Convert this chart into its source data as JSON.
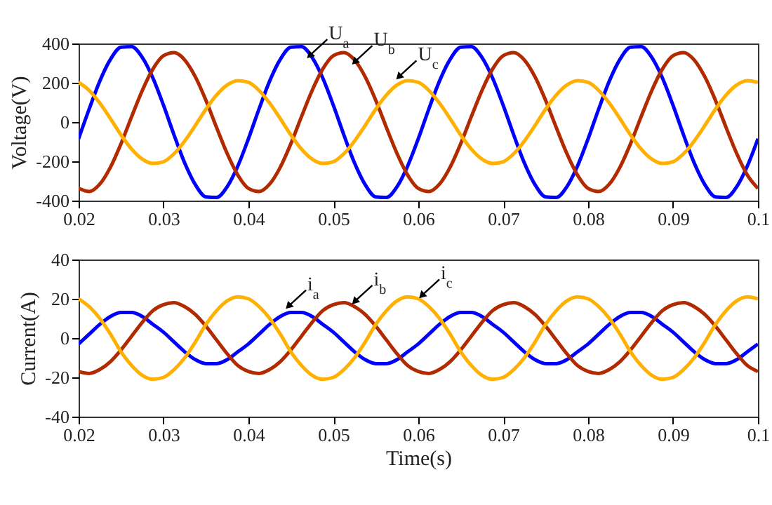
{
  "chart_data": [
    {
      "type": "line",
      "x": [
        0.02,
        0.02125,
        0.0225,
        0.02375,
        0.025,
        0.02625,
        0.0275,
        0.02875,
        0.03,
        0.03125,
        0.0325,
        0.03375,
        0.035,
        0.03625,
        0.0375,
        0.03875,
        0.04,
        0.04125,
        0.0425,
        0.04375,
        0.045,
        0.04625,
        0.0475,
        0.04875,
        0.05,
        0.05125,
        0.0525,
        0.05375,
        0.055,
        0.05625,
        0.0575,
        0.05875,
        0.06,
        0.06125,
        0.0625,
        0.06375,
        0.065,
        0.06625,
        0.0675,
        0.06875,
        0.07,
        0.07125,
        0.0725,
        0.07375,
        0.075,
        0.07625,
        0.0775,
        0.07875,
        0.08,
        0.08125,
        0.0825,
        0.08375,
        0.085,
        0.08625,
        0.0875,
        0.08875,
        0.09,
        0.09125,
        0.0925,
        0.09375,
        0.095,
        0.09625,
        0.0975,
        0.09875,
        0.1
      ],
      "series": [
        {
          "color": "#0000ff",
          "values": [
            -85,
            67,
            209,
            319,
            381,
            384,
            329,
            224,
            85,
            -67,
            -209,
            -319,
            -381,
            -384,
            -329,
            -224,
            -85,
            67,
            209,
            319,
            381,
            384,
            329,
            224,
            85,
            -67,
            -209,
            -319,
            -381,
            -384,
            -329,
            -224,
            -85,
            67,
            209,
            319,
            381,
            384,
            329,
            224,
            85,
            -67,
            -209,
            -319,
            -381,
            -384,
            -329,
            -224,
            -85,
            67,
            209,
            319,
            381,
            384,
            329,
            224,
            85,
            -67,
            -209,
            -319,
            -381,
            -384,
            -329,
            -224,
            -85
          ]
        },
        {
          "color": "#b22a00",
          "values": [
            -338,
            -354,
            -316,
            -230,
            -110,
            28,
            161,
            270,
            338,
            354,
            316,
            230,
            110,
            -28,
            -161,
            -270,
            -338,
            -354,
            -316,
            -230,
            -110,
            28,
            161,
            270,
            338,
            354,
            316,
            230,
            110,
            -28,
            -161,
            -270,
            -338,
            -354,
            -316,
            -230,
            -110,
            28,
            161,
            270,
            338,
            354,
            316,
            230,
            110,
            -28,
            -161,
            -270,
            -338,
            -354,
            -316,
            -230,
            -110,
            28,
            161,
            270,
            338,
            354,
            316,
            230,
            110,
            -28,
            -161,
            -270,
            -338
          ]
        },
        {
          "color": "#ffb000",
          "values": [
            202,
            161,
            96,
            17,
            -66,
            -138,
            -189,
            -211,
            -202,
            -161,
            -96,
            -17,
            66,
            138,
            189,
            211,
            202,
            161,
            96,
            17,
            -66,
            -138,
            -189,
            -211,
            -202,
            -161,
            -96,
            -17,
            66,
            138,
            189,
            211,
            202,
            161,
            96,
            17,
            -66,
            -138,
            -189,
            -211,
            -202,
            -161,
            -96,
            -17,
            66,
            138,
            189,
            211,
            202,
            161,
            96,
            17,
            -66,
            -138,
            -189,
            -211,
            -202,
            -161,
            -96,
            -17,
            66,
            138,
            189,
            211,
            202
          ]
        }
      ],
      "xlim": [
        0.02,
        0.1
      ],
      "xticks": [
        0.02,
        0.03,
        0.04,
        0.05,
        0.06,
        0.07,
        0.08,
        0.09,
        0.1
      ],
      "ylim": [
        -400,
        400
      ],
      "yticks": [
        -400,
        -200,
        0,
        200,
        400
      ],
      "ylabel": "Voltage(V)",
      "annotations": [
        {
          "text": "U$_{a}$",
          "x": 0.0473,
          "y": 342
        },
        {
          "text": "U$_{b}$",
          "x": 0.0526,
          "y": 310
        },
        {
          "text": "U$_{c}$",
          "x": 0.0578,
          "y": 234
        }
      ]
    },
    {
      "type": "line",
      "x": [
        0.02,
        0.02125,
        0.0225,
        0.02375,
        0.025,
        0.02625,
        0.0275,
        0.02875,
        0.03,
        0.03125,
        0.0325,
        0.03375,
        0.035,
        0.03625,
        0.0375,
        0.03875,
        0.04,
        0.04125,
        0.0425,
        0.04375,
        0.045,
        0.04625,
        0.0475,
        0.04875,
        0.05,
        0.05125,
        0.0525,
        0.05375,
        0.055,
        0.05625,
        0.0575,
        0.05875,
        0.06,
        0.06125,
        0.0625,
        0.06375,
        0.065,
        0.06625,
        0.0675,
        0.06875,
        0.07,
        0.07125,
        0.0725,
        0.07375,
        0.075,
        0.07625,
        0.0775,
        0.07875,
        0.08,
        0.08125,
        0.0825,
        0.08375,
        0.085,
        0.08625,
        0.0875,
        0.08875,
        0.09,
        0.09125,
        0.0925,
        0.09375,
        0.095,
        0.09625,
        0.0975,
        0.09875,
        0.1
      ],
      "series": [
        {
          "color": "#0000ff",
          "values": [
            -3,
            2,
            7,
            11,
            13,
            13,
            11,
            7,
            3,
            -2,
            -7,
            -11,
            -13,
            -13,
            -11,
            -7,
            -3,
            2,
            7,
            11,
            13,
            13,
            11,
            7,
            3,
            -2,
            -7,
            -11,
            -13,
            -13,
            -11,
            -7,
            -3,
            2,
            7,
            11,
            13,
            13,
            11,
            7,
            3,
            -2,
            -7,
            -11,
            -13,
            -13,
            -11,
            -7,
            -3,
            2,
            7,
            11,
            13,
            13,
            11,
            7,
            3,
            -2,
            -7,
            -11,
            -13,
            -13,
            -11,
            -7,
            -3
          ]
        },
        {
          "color": "#b22a00",
          "values": [
            -17,
            -18,
            -16,
            -12,
            -6,
            1,
            8,
            14,
            17,
            18,
            16,
            12,
            6,
            -1,
            -8,
            -14,
            -17,
            -18,
            -16,
            -12,
            -6,
            1,
            8,
            14,
            17,
            18,
            16,
            12,
            6,
            -1,
            -8,
            -14,
            -17,
            -18,
            -16,
            -12,
            -6,
            1,
            8,
            14,
            17,
            18,
            16,
            12,
            6,
            -1,
            -8,
            -14,
            -17,
            -18,
            -16,
            -12,
            -6,
            1,
            8,
            14,
            17,
            18,
            16,
            12,
            6,
            -1,
            -8,
            -14,
            -17
          ]
        },
        {
          "color": "#ffb000",
          "values": [
            20,
            16,
            10,
            2,
            -7,
            -14,
            -19,
            -21,
            -20,
            -16,
            -10,
            -2,
            7,
            14,
            19,
            21,
            20,
            16,
            10,
            2,
            -7,
            -14,
            -19,
            -21,
            -20,
            -16,
            -10,
            -2,
            7,
            14,
            19,
            21,
            20,
            16,
            10,
            2,
            -7,
            -14,
            -19,
            -21,
            -20,
            -16,
            -10,
            -2,
            7,
            14,
            19,
            21,
            20,
            16,
            10,
            2,
            -7,
            -14,
            -19,
            -21,
            -20,
            -16,
            -10,
            -2,
            7,
            14,
            19,
            21,
            20
          ]
        }
      ],
      "xlim": [
        0.02,
        0.1
      ],
      "xticks": [
        0.02,
        0.03,
        0.04,
        0.05,
        0.06,
        0.07,
        0.08,
        0.09,
        0.1
      ],
      "ylim": [
        -40,
        40
      ],
      "yticks": [
        -40,
        -20,
        0,
        20,
        40
      ],
      "xlabel": "Time(s)",
      "ylabel": "Current(A)",
      "annotations": [
        {
          "text": "i$_{a}$",
          "x": 0.0448,
          "y": 16.6
        },
        {
          "text": "i$_{b}$",
          "x": 0.0526,
          "y": 19
        },
        {
          "text": "i$_{c}$",
          "x": 0.0605,
          "y": 22
        }
      ]
    }
  ]
}
